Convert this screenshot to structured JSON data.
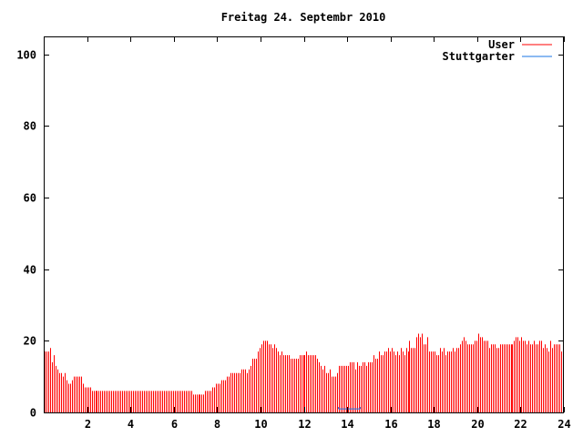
{
  "chart_data": {
    "type": "bar",
    "title": "Freitag 24. Septembr 2010",
    "xlabel": "",
    "ylabel": "",
    "xlim": [
      0,
      24
    ],
    "ylim": [
      0,
      105
    ],
    "x_ticks": [
      "2",
      "4",
      "6",
      "8",
      "10",
      "12",
      "14",
      "16",
      "18",
      "20",
      "22",
      "24"
    ],
    "y_ticks": [
      "0",
      "20",
      "40",
      "60",
      "80",
      "100"
    ],
    "grid": false,
    "legend_position": "top-right",
    "interval_minutes": 5,
    "series": [
      {
        "name": "User",
        "style": "impulses",
        "color": "#ff0000",
        "values": [
          17,
          17,
          17,
          18,
          14,
          16,
          13,
          12,
          11,
          11,
          10,
          11,
          9,
          8,
          8,
          9,
          10,
          10,
          10,
          10,
          10,
          8,
          7,
          7,
          7,
          7,
          6,
          6,
          6,
          6,
          6,
          6,
          6,
          6,
          6,
          6,
          6,
          6,
          6,
          6,
          6,
          6,
          6,
          6,
          6,
          6,
          6,
          6,
          6,
          6,
          6,
          6,
          6,
          6,
          6,
          6,
          6,
          6,
          6,
          6,
          6,
          6,
          6,
          6,
          6,
          6,
          6,
          6,
          6,
          6,
          6,
          6,
          6,
          6,
          6,
          6,
          6,
          6,
          6,
          6,
          6,
          6,
          5,
          5,
          5,
          5,
          5,
          5,
          5,
          6,
          6,
          6,
          6,
          7,
          7,
          8,
          8,
          8,
          9,
          9,
          9,
          10,
          10,
          11,
          11,
          11,
          11,
          11,
          11,
          12,
          12,
          12,
          11,
          12,
          13,
          15,
          15,
          15,
          17,
          18,
          19,
          20,
          20,
          20,
          19,
          19,
          18,
          19,
          18,
          17,
          16,
          17,
          16,
          16,
          16,
          16,
          15,
          15,
          15,
          15,
          15,
          16,
          16,
          16,
          16,
          17,
          16,
          16,
          16,
          16,
          16,
          15,
          14,
          13,
          12,
          13,
          11,
          11,
          12,
          10,
          10,
          10,
          11,
          13,
          13,
          13,
          13,
          13,
          13,
          14,
          14,
          14,
          12,
          14,
          13,
          13,
          14,
          14,
          13,
          14,
          14,
          14,
          16,
          15,
          15,
          17,
          16,
          16,
          17,
          17,
          18,
          17,
          18,
          17,
          16,
          17,
          16,
          18,
          17,
          16,
          18,
          17,
          20,
          18,
          18,
          18,
          21,
          22,
          21,
          22,
          19,
          19,
          21,
          17,
          17,
          17,
          17,
          16,
          16,
          18,
          17,
          18,
          16,
          17,
          17,
          17,
          18,
          17,
          18,
          18,
          19,
          20,
          21,
          20,
          19,
          19,
          19,
          19,
          20,
          20,
          22,
          21,
          21,
          20,
          20,
          20,
          18,
          19,
          19,
          19,
          18,
          18,
          19,
          19,
          19,
          19,
          19,
          19,
          19,
          19,
          20,
          21,
          21,
          20,
          21,
          20,
          20,
          19,
          20,
          19,
          19,
          20,
          19,
          19,
          20,
          20,
          18,
          19,
          18,
          17,
          20,
          18,
          19,
          19,
          19,
          19,
          17,
          18
        ]
      },
      {
        "name": "Stuttgarter",
        "style": "lines",
        "color": "#1a75e6",
        "x": [
          13.6,
          14.6
        ],
        "y": [
          1,
          1
        ]
      }
    ]
  }
}
